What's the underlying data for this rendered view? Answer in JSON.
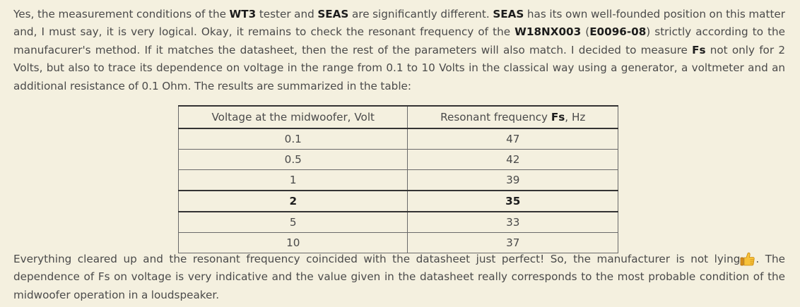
{
  "para1": {
    "t1": "Yes, the measurement conditions of the ",
    "wt3": "WT3",
    "t2": " tester and ",
    "seas1": "SEAS",
    "t3": " are significantly different. ",
    "seas2": "SEAS",
    "t4": " has its own well-founded position on this matter and, I must say, it is very logical. Okay, it remains to check the resonant frequency of the ",
    "model": "W18NX003",
    "t5": " (",
    "code": "E0096-08",
    "t6": ") strictly according to the manufacurer's method. If it matches the datasheet, then the rest of the parameters will also match. I decided to measure ",
    "fs": "Fs",
    "t7": " not only for 2 Volts, but also to trace its dependence on voltage in the range from 0.1 to 10 Volts in the classical way using a generator, a voltmeter and an additional resistance of 0.1 Ohm. The results are summarized in the table:"
  },
  "table": {
    "header_voltage": "Voltage at the midwoofer, Volt",
    "header_freq_pre": "Resonant frequency ",
    "header_freq_fs": "Fs",
    "header_freq_post": ", Hz",
    "rows": [
      {
        "voltage": "0.1",
        "freq": "47"
      },
      {
        "voltage": "0.5",
        "freq": "42"
      },
      {
        "voltage": "1",
        "freq": "39"
      },
      {
        "voltage": "2",
        "freq": "35"
      },
      {
        "voltage": "5",
        "freq": "33"
      },
      {
        "voltage": "10",
        "freq": "37"
      }
    ]
  },
  "para2": {
    "t1": "Everything cleared up and the resonant frequency coincided with the datasheet just perfect! So, the manufacturer is not lying",
    "emoji": "thumbs-up-emoji",
    "t2": ". The dependence of Fs on voltage is very indicative and the value given in the datasheet really corresponds to the most probable condition of the midwoofer operation in a loudspeaker."
  },
  "colors": {
    "background": "#f4f0df",
    "text": "#4a4a4a",
    "highlight": "#1c1c1c"
  }
}
